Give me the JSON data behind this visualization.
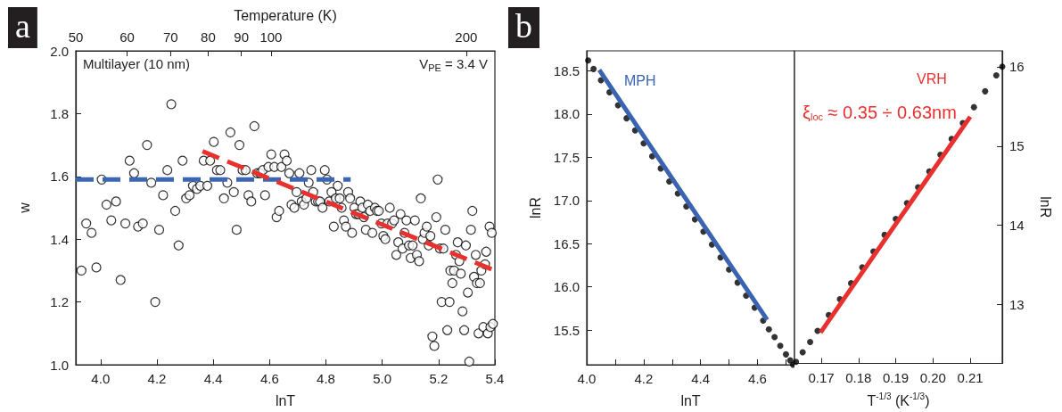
{
  "chart_data": [
    {
      "type": "scatter",
      "xlabel": "lnT",
      "ylabel": "w",
      "x2label": "Temperature (K)",
      "annotations": [
        "a",
        "Multilayer (10 nm)",
        "V$_{PE}$ = 3.4 V"
      ],
      "xlim": [
        3.912,
        5.4
      ],
      "xticks": [
        {
          "value": 4,
          "label": "4.0"
        },
        4.2,
        4.4,
        4.6,
        4.8,
        {
          "value": 5,
          "label": "5.0"
        },
        5.2,
        5.4
      ],
      "x2lim": [
        50,
        221.4
      ],
      "x2ticks": [
        50,
        60,
        70,
        80,
        90,
        100,
        200
      ],
      "log": "x2",
      "ylim": [
        1,
        2
      ],
      "yticks": [
        {
          "value": 1,
          "label": "1.0"
        },
        1.2,
        1.4,
        1.6,
        1.8,
        {
          "value": 2,
          "label": "2.0"
        }
      ],
      "marker": "circle",
      "series": [
        {
          "color": "#000000",
          "x": [
            3.932,
            3.949,
            3.968,
            3.985,
            4.004,
            4.021,
            4.038,
            4.055,
            4.071,
            4.088,
            4.103,
            4.119,
            4.133,
            4.15,
            4.165,
            4.18,
            4.194,
            4.208,
            4.222,
            4.237,
            4.251,
            4.265,
            4.277,
            4.291,
            4.304,
            4.316,
            4.328,
            4.342,
            4.354,
            4.366,
            4.379,
            4.389,
            4.402,
            4.413,
            4.425,
            4.438,
            4.45,
            4.461,
            4.473,
            4.483,
            4.493,
            4.504,
            4.515,
            4.525,
            4.535,
            4.546,
            4.556,
            4.566,
            4.576,
            4.584,
            4.596,
            4.606,
            4.617,
            4.625,
            4.634,
            4.642,
            4.653,
            4.661,
            4.67,
            4.678,
            4.688,
            4.696,
            4.706,
            4.714,
            4.722,
            4.731,
            4.739,
            4.748,
            4.755,
            4.764,
            4.772,
            4.779,
            4.788,
            4.796,
            4.804,
            4.812,
            4.82,
            4.828,
            4.835,
            4.842,
            4.849,
            4.856,
            4.864,
            4.871,
            4.879,
            4.886,
            4.893,
            4.901,
            4.907,
            4.915,
            4.922,
            4.929,
            4.935,
            4.942,
            4.949,
            4.957,
            4.965,
            4.974,
            4.981,
            4.988,
            4.997,
            5.004,
            5.011,
            5.019,
            5.027,
            5.035,
            5.042,
            5.05,
            5.057,
            5.065,
            5.072,
            5.079,
            5.086,
            5.095,
            5.101,
            5.108,
            5.116,
            5.123,
            5.131,
            5.137,
            5.144,
            5.15,
            5.158,
            5.165,
            5.171,
            5.178,
            5.185,
            5.192,
            5.197,
            5.205,
            5.211,
            5.217,
            5.224,
            5.231,
            5.239,
            5.242,
            5.249,
            5.255,
            5.262,
            5.268,
            5.274,
            5.279,
            5.285,
            5.291,
            5.297,
            5.304,
            5.309,
            5.315,
            5.32,
            5.326,
            5.332,
            5.336,
            5.342,
            5.347,
            5.352,
            5.359,
            5.365,
            5.369,
            5.375,
            5.381,
            5.384,
            5.389,
            5.393
          ],
          "values": [
            1.3,
            1.45,
            1.42,
            1.31,
            1.59,
            1.51,
            1.46,
            1.52,
            1.27,
            1.45,
            1.65,
            1.61,
            1.44,
            1.45,
            1.7,
            1.58,
            1.2,
            1.43,
            1.54,
            1.62,
            1.83,
            1.49,
            1.38,
            1.65,
            1.53,
            1.54,
            1.57,
            1.56,
            1.57,
            1.65,
            1.57,
            1.65,
            1.71,
            1.62,
            1.62,
            1.53,
            1.58,
            1.74,
            1.55,
            1.43,
            1.7,
            1.62,
            1.62,
            1.54,
            1.52,
            1.76,
            1.61,
            1.61,
            1.62,
            1.54,
            1.63,
            1.67,
            1.63,
            1.47,
            1.49,
            1.63,
            1.67,
            1.65,
            1.61,
            1.51,
            1.5,
            1.55,
            1.61,
            1.52,
            1.51,
            1.53,
            1.58,
            1.62,
            1.55,
            1.52,
            1.52,
            1.52,
            1.5,
            1.62,
            1.59,
            1.52,
            1.55,
            1.44,
            1.53,
            1.57,
            1.53,
            1.5,
            1.46,
            1.44,
            1.55,
            1.53,
            1.42,
            1.5,
            1.48,
            1.48,
            1.52,
            1.5,
            1.47,
            1.43,
            1.51,
            1.49,
            1.42,
            1.5,
            1.49,
            1.49,
            1.45,
            1.41,
            1.4,
            1.45,
            1.5,
            1.45,
            1.46,
            1.35,
            1.39,
            1.48,
            1.37,
            1.42,
            1.46,
            1.38,
            1.34,
            1.38,
            1.46,
            1.35,
            1.33,
            1.53,
            1.4,
            1.42,
            1.44,
            1.38,
            1.41,
            1.09,
            1.06,
            1.47,
            1.59,
            1.37,
            1.2,
            1.37,
            1.43,
            1.11,
            1.2,
            1.3,
            1.26,
            1.3,
            1.35,
            1.39,
            1.33,
            1.29,
            1.17,
            1.11,
            1.38,
            1.23,
            1.01,
            1.43,
            1.49,
            1.28,
            1.35,
            1.26,
            1.1,
            1.26,
            1.3,
            1.12,
            1.32,
            1.36,
            1.1,
            1.44,
            1.12,
            1.42,
            1.13
          ]
        },
        {
          "type": "line",
          "color": "#3a66b2",
          "marker": "none",
          "line_style": "dashed",
          "x": [
            3.912,
            4.888
          ],
          "values": [
            1.59,
            1.59
          ]
        },
        {
          "type": "line",
          "color": "#e8312f",
          "marker": "none",
          "line_style": "dashed",
          "x": [
            4.362,
            5.4
          ],
          "values": [
            1.68,
            1.3
          ]
        }
      ]
    },
    {
      "type": "scatter",
      "xlabel": "lnT",
      "ylabel": "lnR",
      "annotations": [
        "b"
      ],
      "xlim": [
        4.0,
        4.73
      ],
      "xticks": [
        {
          "value": 4,
          "label": "4.0"
        },
        {
          "value": 4.1,
          "label": null
        },
        4.2,
        {
          "value": 4.3,
          "label": null
        },
        4.4,
        {
          "value": 4.5,
          "label": null
        },
        4.6,
        {
          "value": 4.7,
          "label": null
        }
      ],
      "ylim": [
        15.1,
        18.73
      ],
      "yticks": [
        15.5,
        {
          "value": 16,
          "label": "16.0"
        },
        16.5,
        {
          "value": 17,
          "label": "17.0"
        },
        17.5,
        {
          "value": 18,
          "label": "18.0"
        },
        18.5
      ],
      "marker": "circle",
      "series": [
        {
          "color": "#000000",
          "x": [
            4.005,
            4.024,
            4.05,
            4.08,
            4.11,
            4.14,
            4.17,
            4.2,
            4.23,
            4.26,
            4.29,
            4.32,
            4.35,
            4.38,
            4.41,
            4.44,
            4.47,
            4.5,
            4.53,
            4.56,
            4.59,
            4.62,
            4.64,
            4.66,
            4.68,
            4.7,
            4.715,
            4.725
          ],
          "values": [
            18.62,
            18.52,
            18.39,
            18.25,
            18.1,
            17.95,
            17.81,
            17.66,
            17.51,
            17.37,
            17.22,
            17.08,
            16.93,
            16.78,
            16.64,
            16.49,
            16.34,
            16.2,
            16.05,
            15.9,
            15.76,
            15.61,
            15.51,
            15.42,
            15.32,
            15.22,
            15.15,
            15.1
          ]
        },
        {
          "type": "line",
          "name": "MPH",
          "color": "#3a63b0",
          "marker": "none",
          "x": [
            4.044,
            4.634
          ],
          "values": [
            18.51,
            15.62
          ]
        }
      ]
    },
    {
      "type": "scatter",
      "xlabel": "T$^{-1/3}$ (K$^{-1/3}$)",
      "y2label": "lnR",
      "annotations": [
        "ξ$_{loc}$ ≈ 0.35 ÷ 0.63nm"
      ],
      "xlim": [
        0.1628,
        0.2186
      ],
      "xticks": [
        0.17,
        0.18,
        0.19,
        {
          "value": 0.2,
          "label": "0.20"
        },
        0.21
      ],
      "y2lim": [
        12.26,
        16.2
      ],
      "y2ticks": [
        13,
        14,
        15,
        16
      ],
      "marker": "circle",
      "series": [
        {
          "color": "#000000",
          "axis": "y2",
          "x": [
            0.1632,
            0.165,
            0.167,
            0.169,
            0.172,
            0.175,
            0.178,
            0.181,
            0.184,
            0.187,
            0.19,
            0.193,
            0.196,
            0.199,
            0.202,
            0.205,
            0.208,
            0.211,
            0.214,
            0.217,
            0.2186
          ],
          "values": [
            12.28,
            12.4,
            12.53,
            12.67,
            12.87,
            13.07,
            13.27,
            13.47,
            13.67,
            13.88,
            14.08,
            14.28,
            14.48,
            14.68,
            14.89,
            15.09,
            15.29,
            15.49,
            15.69,
            15.89,
            16.0
          ]
        },
        {
          "type": "line",
          "name": "VRH",
          "color": "#e8312f",
          "marker": "none",
          "axis": "y2",
          "x": [
            0.1698,
            0.21
          ],
          "values": [
            12.65,
            15.37
          ]
        }
      ]
    }
  ]
}
